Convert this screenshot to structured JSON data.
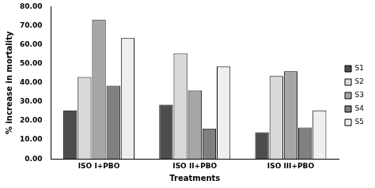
{
  "chart_data": {
    "type": "bar",
    "x_label": "Treatments",
    "y_label": "% increase in mortality",
    "categories": [
      "ISO I+PBO",
      "ISO II+PBO",
      "ISO III+PBO"
    ],
    "series": [
      {
        "name": "S1",
        "color": "#4d4d4d",
        "values": [
          25.5,
          28.5,
          14.0
        ]
      },
      {
        "name": "S2",
        "color": "#d9d9d9",
        "values": [
          43.0,
          55.5,
          43.5
        ]
      },
      {
        "name": "S3",
        "color": "#a6a6a6",
        "values": [
          73.0,
          36.0,
          46.0
        ]
      },
      {
        "name": "S4",
        "color": "#808080",
        "values": [
          38.5,
          16.0,
          16.5
        ]
      },
      {
        "name": "S5",
        "color": "#efefef",
        "values": [
          63.5,
          48.5,
          25.5
        ]
      }
    ],
    "ylim": [
      0,
      80
    ],
    "yticks": [
      {
        "value": 0,
        "label": "0.00"
      },
      {
        "value": 10,
        "label": "10.00"
      },
      {
        "value": 20,
        "label": "20.00"
      },
      {
        "value": 30,
        "label": "30.00"
      },
      {
        "value": 40,
        "label": "40.00"
      },
      {
        "value": 50,
        "label": "50.00"
      },
      {
        "value": 60,
        "label": "60.00"
      },
      {
        "value": 70,
        "label": "70.00"
      },
      {
        "value": 80,
        "label": "80.00"
      }
    ],
    "grid": false,
    "legend": "right"
  }
}
